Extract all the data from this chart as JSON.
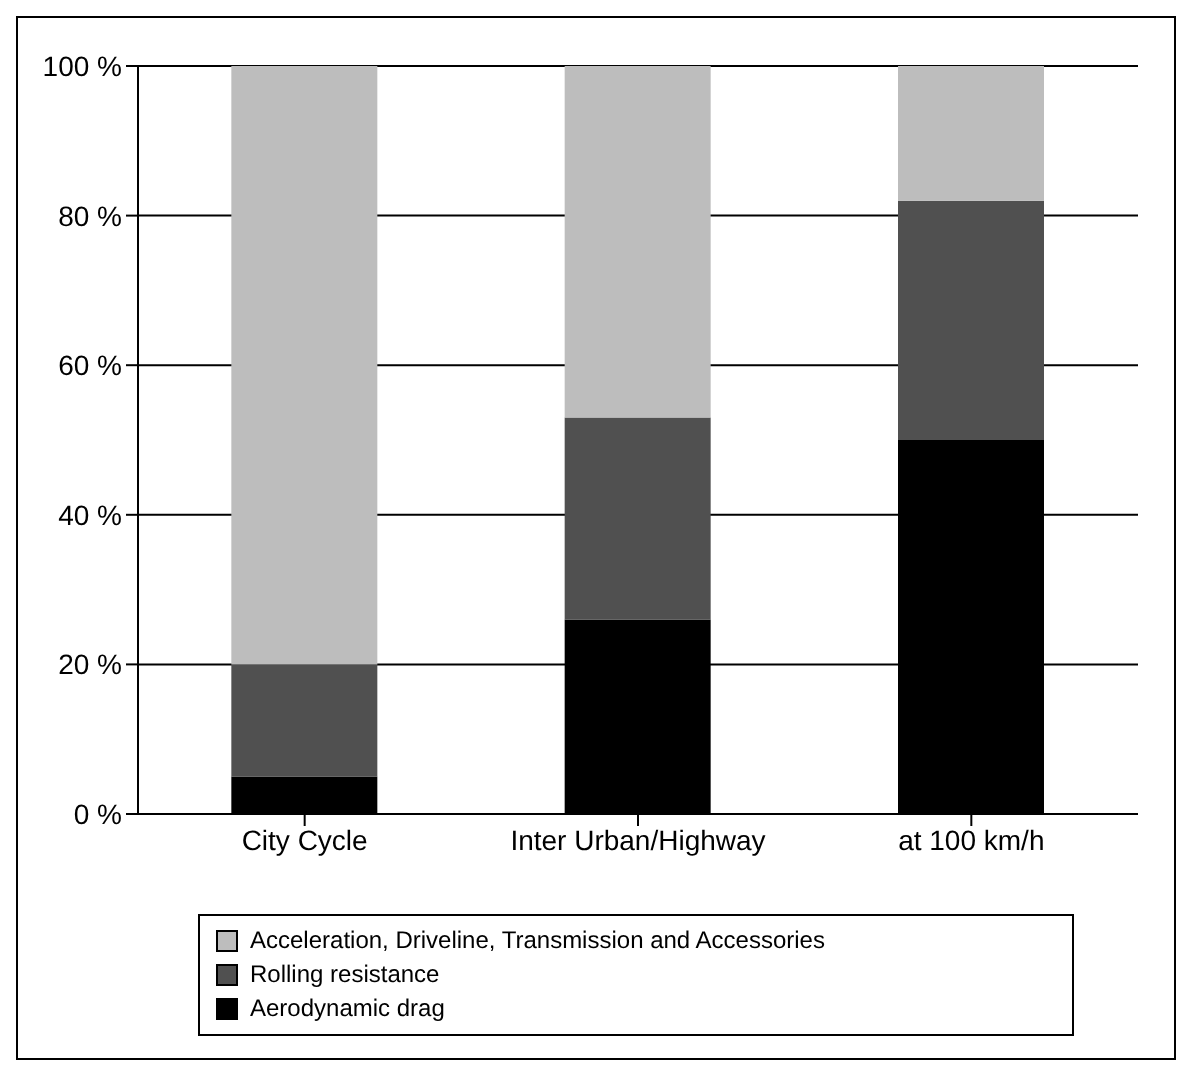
{
  "chart_data": {
    "type": "bar",
    "stacked": true,
    "categories": [
      "City Cycle",
      "Inter Urban/Highway",
      "at 100 km/h"
    ],
    "series": [
      {
        "name": "Aerodynamic drag",
        "color": "#000000",
        "values": [
          5,
          26,
          50
        ]
      },
      {
        "name": "Rolling resistance",
        "color": "#505050",
        "values": [
          15,
          27,
          32
        ]
      },
      {
        "name": "Acceleration, Driveline, Transmission and Accessories",
        "color": "#bdbdbd",
        "values": [
          80,
          47,
          18
        ]
      }
    ],
    "ylim": [
      0,
      100
    ],
    "yticks": [
      {
        "value": 0,
        "label": "0 %"
      },
      {
        "value": 20,
        "label": "20 %"
      },
      {
        "value": 40,
        "label": "40 %"
      },
      {
        "value": 60,
        "label": "60 %"
      },
      {
        "value": 80,
        "label": "80 %"
      },
      {
        "value": 100,
        "label": "100 %"
      }
    ],
    "grid": "y",
    "legend": "bottom"
  }
}
